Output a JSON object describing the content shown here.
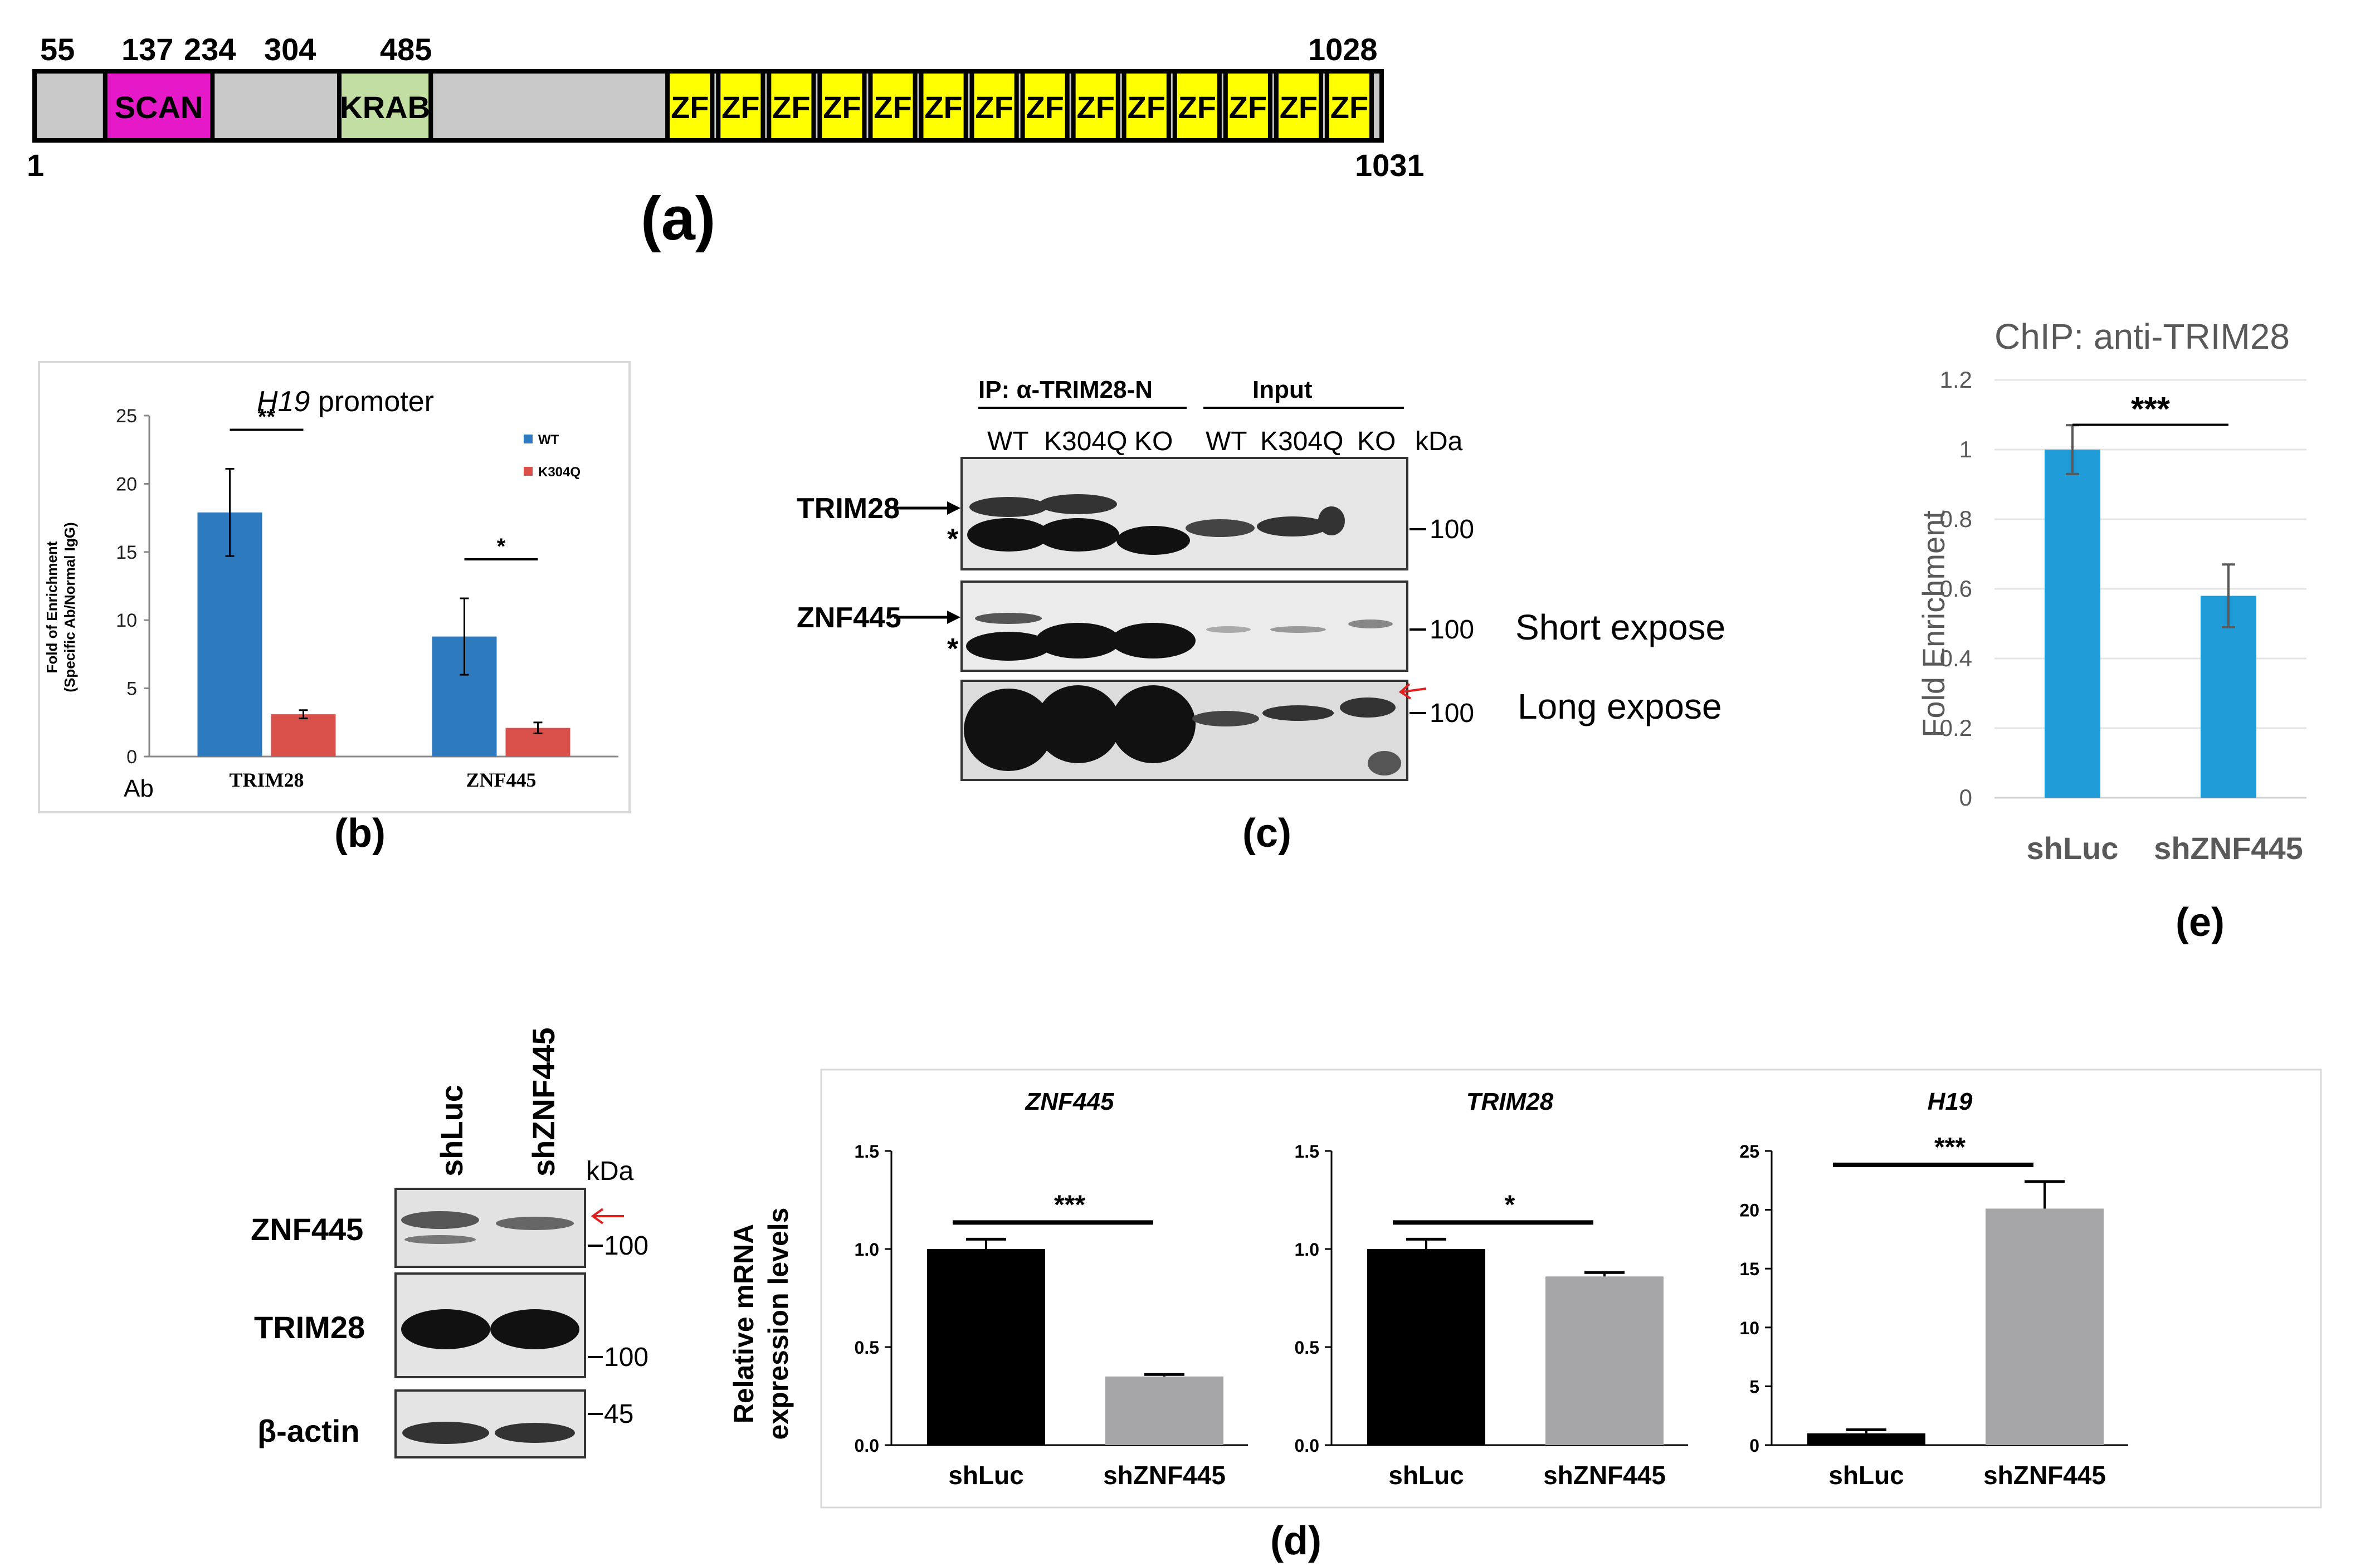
{
  "panel_a": {
    "label": "(a)",
    "start": 1,
    "end": 1031,
    "positions": [
      "55",
      "137",
      "234",
      "304",
      "485",
      "1028"
    ],
    "start_label": "1",
    "end_label": "1031",
    "domains": [
      {
        "label": "SCAN",
        "from": 55,
        "to": 137,
        "color": "#e619c8"
      },
      {
        "label": "KRAB",
        "from": 234,
        "to": 304,
        "color": "#c3dea3"
      },
      {
        "label": "",
        "from": 304,
        "to": 485,
        "color": "#c8c8c8"
      }
    ],
    "zf_label": "ZF",
    "zf_count": 14,
    "zf_color": "#ffff00",
    "backbone_color": "#c8c8c8"
  },
  "panel_b": {
    "label": "(b)",
    "axis_prefix": "Ab",
    "colors": {
      "WT": "#2e7abf",
      "K304Q": "#d9504a"
    },
    "chart_data": {
      "type": "bar",
      "title_italic": "H19",
      "title_rest": " promoter",
      "ylabel_line1": "Fold of Enrichment",
      "ylabel_line2": "(Specific Ab/Normal IgG)",
      "categories": [
        "TRIM28",
        "ZNF445"
      ],
      "series": [
        {
          "name": "WT",
          "values": [
            17.9,
            8.8
          ],
          "errors": [
            3.2,
            2.8
          ]
        },
        {
          "name": "K304Q",
          "values": [
            3.1,
            2.1
          ],
          "errors": [
            0.3,
            0.4
          ]
        }
      ],
      "ylim": [
        0,
        25
      ],
      "yticks": [
        "0",
        "5",
        "10",
        "15",
        "20",
        "25"
      ],
      "significance": [
        "**",
        "*"
      ],
      "legend_position": "top-right"
    }
  },
  "panel_c": {
    "label": "(c)",
    "ip_label": "IP: α-TRIM28-N",
    "input_label": "Input",
    "lanes": [
      "WT",
      "K304Q",
      "KO",
      "WT",
      "K304Q",
      "KO"
    ],
    "kda": "kDa",
    "rows": [
      {
        "name": "TRIM28",
        "marker": "100",
        "note": ""
      },
      {
        "name": "ZNF445",
        "marker": "100",
        "note": "Short expose"
      },
      {
        "name": "",
        "marker": "100",
        "note": "Long expose"
      }
    ],
    "star": "*"
  },
  "panel_e": {
    "label": "(e)",
    "color": "#1f9bd7",
    "chart_data": {
      "type": "bar",
      "title": "ChIP: anti-TRIM28",
      "ylabel": "Fold Enrichment",
      "categories": [
        "shLuc",
        "shZNF445"
      ],
      "values": [
        1.0,
        0.58
      ],
      "errors": [
        0.07,
        0.09
      ],
      "ylim": [
        0,
        1.2
      ],
      "yticks": [
        "0",
        "0.2",
        "0.4",
        "0.6",
        "0.8",
        "1",
        "1.2"
      ],
      "significance": "***"
    }
  },
  "panel_d": {
    "label": "(d)",
    "blot": {
      "lanes": [
        "shLuc",
        "shZNF445"
      ],
      "kda": "kDa",
      "rows": [
        {
          "name": "ZNF445",
          "marker": "100"
        },
        {
          "name": "TRIM28",
          "marker": "100"
        },
        {
          "name": "β-actin",
          "marker": "45"
        }
      ]
    },
    "ylabel_line1": "Relative mRNA",
    "ylabel_line2": "expression levels",
    "colors": [
      "#000000",
      "#a6a6a8"
    ],
    "chart_data": [
      {
        "type": "bar",
        "title": "ZNF445",
        "categories": [
          "shLuc",
          "shZNF445"
        ],
        "values": [
          1.0,
          0.35
        ],
        "errors": [
          0.05,
          0.01
        ],
        "ylim": [
          0,
          1.5
        ],
        "yticks": [
          "0.0",
          "0.5",
          "1.0",
          "1.5"
        ],
        "significance": "***"
      },
      {
        "type": "bar",
        "title": "TRIM28",
        "categories": [
          "shLuc",
          "shZNF445"
        ],
        "values": [
          1.0,
          0.86
        ],
        "errors": [
          0.05,
          0.02
        ],
        "ylim": [
          0,
          1.5
        ],
        "yticks": [
          "0.0",
          "0.5",
          "1.0",
          "1.5"
        ],
        "significance": "*"
      },
      {
        "type": "bar",
        "title": "H19",
        "categories": [
          "shLuc",
          "shZNF445"
        ],
        "values": [
          1.0,
          20.1
        ],
        "errors": [
          0.3,
          2.3
        ],
        "ylim": [
          0,
          25
        ],
        "yticks": [
          "0",
          "5",
          "10",
          "15",
          "20",
          "25"
        ],
        "significance": "***"
      }
    ]
  }
}
